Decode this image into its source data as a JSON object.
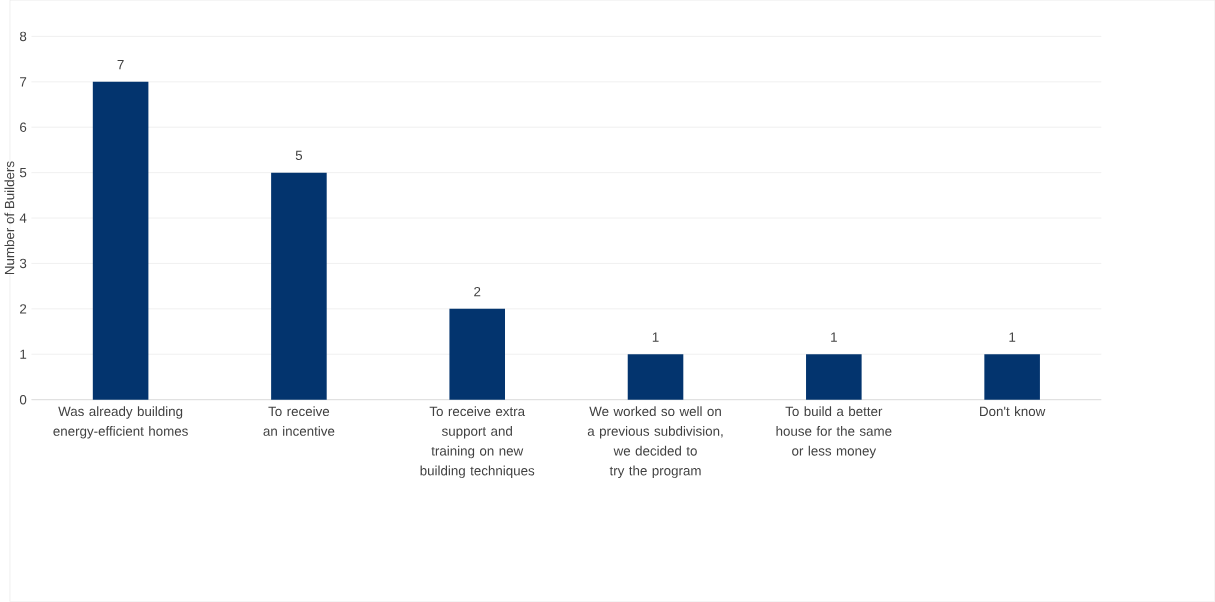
{
  "chart_data": {
    "type": "bar",
    "ylabel": "Number of Builders",
    "categories": [
      "Was already building energy-efficient homes",
      "To receive an incentive",
      "To receive extra support and training on new building techniques",
      "We worked so well on a previous subdivision, we decided to try the program",
      "To build a better house for the same or less money",
      "Don't know"
    ],
    "values": [
      7,
      5,
      2,
      1,
      1,
      1
    ],
    "color": "#03346e",
    "ylim": [
      0,
      8
    ],
    "yticks": [
      0,
      1,
      2,
      3,
      4,
      5,
      6,
      7,
      8
    ],
    "grid": "y",
    "data_labels": true
  }
}
